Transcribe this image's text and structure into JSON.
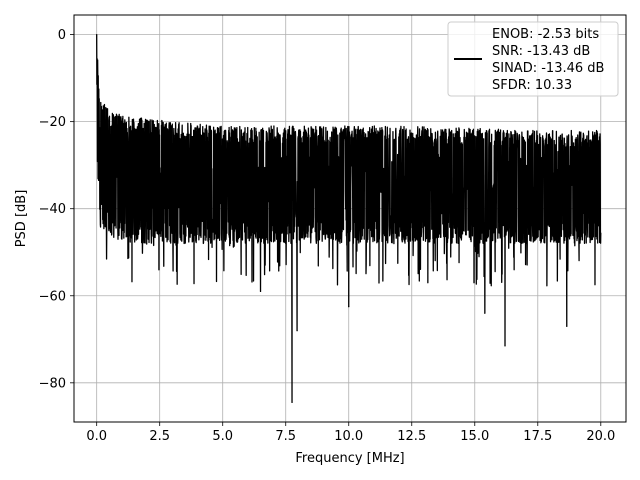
{
  "chart_data": {
    "type": "line",
    "title": "",
    "xlabel": "Frequency [MHz]",
    "ylabel": "PSD [dB]",
    "xlim": [
      -0.9,
      21.0
    ],
    "ylim": [
      -89,
      4.5
    ],
    "xticks": [
      0.0,
      2.5,
      5.0,
      7.5,
      10.0,
      12.5,
      15.0,
      17.5,
      20.0
    ],
    "xtick_labels": [
      "0.0",
      "2.5",
      "5.0",
      "7.5",
      "10.0",
      "12.5",
      "15.0",
      "17.5",
      "20.0"
    ],
    "yticks": [
      0,
      -20,
      -40,
      -60,
      -80
    ],
    "ytick_labels": [
      "0",
      "−20",
      "−40",
      "−60",
      "−80"
    ],
    "grid": true,
    "legend_position": "top-right",
    "legend_lines": [
      "ENOB: -2.53 bits",
      "SNR: -13.43 dB",
      "SINAD: -13.46 dB",
      "SFDR: 10.33"
    ],
    "series": [
      {
        "color": "#000000",
        "envelope": {
          "x": [
            0.0,
            0.1,
            0.3,
            0.7,
            1.5,
            3.0,
            5.0,
            7.5,
            10.0,
            12.5,
            15.0,
            17.5,
            20.0
          ],
          "upper": [
            0.0,
            -13.0,
            -16.0,
            -18.0,
            -19.0,
            -20.0,
            -21.0,
            -21.0,
            -21.0,
            -21.0,
            -21.5,
            -22.0,
            -22.0
          ],
          "lower": [
            -33.0,
            -40.0,
            -45.0,
            -47.0,
            -48.0,
            -48.0,
            -48.0,
            -48.0,
            -48.0,
            -48.0,
            -48.0,
            -48.0,
            -48.0
          ]
        },
        "notable_points": [
          {
            "x": 0.0,
            "y": 0.0
          },
          {
            "x": 7.75,
            "y": -84.5
          },
          {
            "x": 7.95,
            "y": -68.0
          },
          {
            "x": 16.2,
            "y": -71.5
          },
          {
            "x": 18.65,
            "y": -67.0
          },
          {
            "x": 15.4,
            "y": -64.0
          },
          {
            "x": 10.0,
            "y": -62.5
          },
          {
            "x": 6.5,
            "y": -59.0
          }
        ]
      }
    ]
  }
}
